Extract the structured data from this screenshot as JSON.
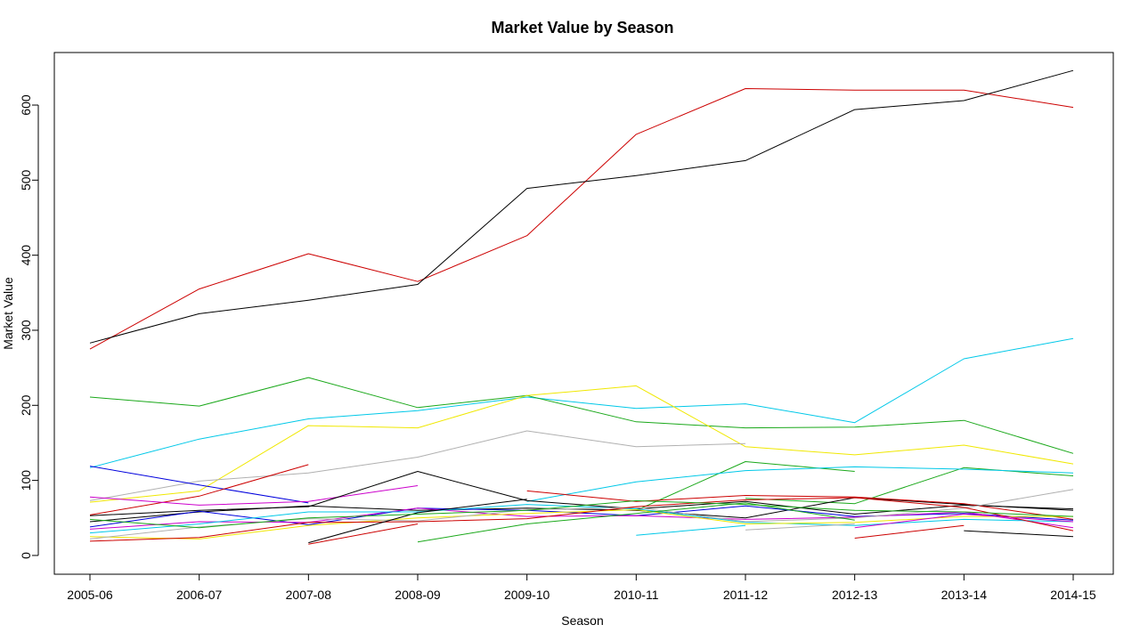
{
  "chart_data": {
    "type": "line",
    "title": "Market Value by Season",
    "xlabel": "Season",
    "ylabel": "Market Value",
    "categories": [
      "2005-06",
      "2006-07",
      "2007-08",
      "2008-09",
      "2009-10",
      "2010-11",
      "2011-12",
      "2012-13",
      "2013-14",
      "2014-15"
    ],
    "ylim": [
      -25,
      670
    ],
    "yticks": [
      0,
      100,
      200,
      300,
      400,
      500,
      600
    ],
    "grid": false,
    "legend": "none",
    "series": [
      {
        "color": "#cc0000",
        "values": [
          275,
          355,
          402,
          365,
          426,
          561,
          622,
          620,
          620,
          597
        ]
      },
      {
        "color": "#000000",
        "values": [
          283,
          322,
          340,
          361,
          489,
          506,
          526,
          594,
          606,
          646
        ]
      },
      {
        "color": "#00c8e8",
        "values": [
          117,
          155,
          182,
          193,
          211,
          196,
          202,
          177,
          262,
          289
        ]
      },
      {
        "color": "#1aa81a",
        "values": [
          211,
          199,
          237,
          197,
          213,
          178,
          170,
          171,
          180,
          136
        ]
      },
      {
        "color": "#f0e800",
        "values": [
          71,
          86,
          173,
          170,
          213,
          226,
          145,
          134,
          147,
          122
        ]
      },
      {
        "color": "#b0b0b0",
        "values": [
          73,
          99,
          110,
          131,
          166,
          145,
          149,
          null,
          null,
          null
        ]
      },
      {
        "color": "#1aa81a",
        "values": [
          null,
          null,
          null,
          null,
          null,
          60,
          125,
          112,
          null,
          null
        ]
      },
      {
        "color": "#1aa81a",
        "values": [
          null,
          null,
          null,
          null,
          null,
          null,
          76,
          69,
          117,
          106
        ]
      },
      {
        "color": "#00c8e8",
        "values": [
          null,
          null,
          null,
          null,
          72,
          98,
          113,
          118,
          115,
          110
        ]
      },
      {
        "color": "#0000dd",
        "values": [
          119,
          94,
          70,
          null,
          null,
          null,
          null,
          null,
          null,
          null
        ]
      },
      {
        "color": "#cc0000",
        "values": [
          54,
          79,
          121,
          null,
          null,
          null,
          null,
          null,
          null,
          null
        ]
      },
      {
        "color": "#cc00cc",
        "values": [
          78,
          67,
          72,
          93,
          null,
          null,
          null,
          null,
          null,
          null
        ]
      },
      {
        "color": "#000000",
        "values": [
          53,
          60,
          65,
          112,
          73,
          62,
          72,
          55,
          67,
          62
        ]
      },
      {
        "color": "#000000",
        "values": [
          45,
          58,
          66,
          60,
          63,
          60,
          50,
          77,
          68,
          60
        ]
      },
      {
        "color": "#cc0000",
        "values": [
          null,
          null,
          null,
          null,
          86,
          72,
          80,
          78,
          69,
          48
        ]
      },
      {
        "color": "#0000dd",
        "values": [
          38,
          59,
          41,
          63,
          60,
          53,
          66,
          52,
          56,
          47
        ]
      },
      {
        "color": "#cc00cc",
        "values": [
          35,
          45,
          44,
          63,
          52,
          53,
          48,
          51,
          58,
          37
        ]
      },
      {
        "color": "#00c8e8",
        "values": [
          30,
          42,
          58,
          58,
          68,
          62,
          44,
          40,
          48,
          45
        ]
      },
      {
        "color": "#f0e800",
        "values": [
          25,
          22,
          40,
          50,
          56,
          61,
          42,
          44,
          52,
          52
        ]
      },
      {
        "color": "#b0b0b0",
        "values": [
          22,
          38,
          49,
          46,
          61,
          64,
          45,
          50,
          63,
          88
        ]
      },
      {
        "color": "#1aa81a",
        "values": [
          null,
          null,
          null,
          18,
          42,
          56,
          70,
          47,
          null,
          null
        ]
      },
      {
        "color": "#cc0000",
        "values": [
          19,
          24,
          44,
          45,
          49,
          65,
          74,
          77,
          64,
          33
        ]
      },
      {
        "color": "#000000",
        "values": [
          null,
          null,
          17,
          57,
          75,
          null,
          null,
          null,
          null,
          null
        ]
      },
      {
        "color": "#cc0000",
        "values": [
          null,
          null,
          15,
          42,
          null,
          null,
          null,
          null,
          null,
          null
        ]
      },
      {
        "color": "#00c8e8",
        "values": [
          null,
          null,
          null,
          null,
          null,
          27,
          40,
          null,
          null,
          null
        ]
      },
      {
        "color": "#b0b0b0",
        "values": [
          null,
          null,
          null,
          null,
          null,
          null,
          34,
          42,
          null,
          null
        ]
      },
      {
        "color": "#cc0000",
        "values": [
          null,
          null,
          null,
          null,
          null,
          null,
          null,
          23,
          40,
          null
        ]
      },
      {
        "color": "#cc00cc",
        "values": [
          null,
          null,
          null,
          null,
          null,
          null,
          null,
          37,
          55,
          45
        ]
      },
      {
        "color": "#000000",
        "values": [
          null,
          null,
          null,
          null,
          null,
          null,
          null,
          null,
          33,
          25
        ]
      },
      {
        "color": "#1aa81a",
        "values": [
          48,
          37,
          50,
          55,
          60,
          73,
          68,
          60,
          58,
          52
        ]
      }
    ]
  }
}
